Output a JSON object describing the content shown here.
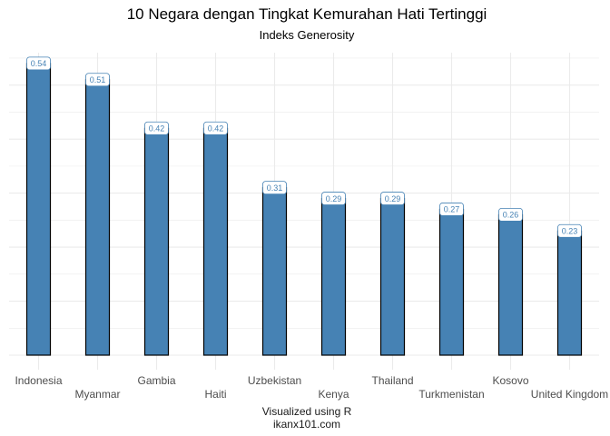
{
  "chart_data": {
    "type": "bar",
    "title": "10 Negara dengan Tingkat Kemurahan Hati Tertinggi",
    "subtitle": "Indeks Generosity",
    "caption_lines": [
      "Visualized using R",
      "ikanx101.com"
    ],
    "categories": [
      "Indonesia",
      "Myanmar",
      "Gambia",
      "Haiti",
      "Uzbekistan",
      "Kenya",
      "Thailand",
      "Turkmenistan",
      "Kosovo",
      "United Kingdom"
    ],
    "values": [
      0.54,
      0.51,
      0.42,
      0.42,
      0.31,
      0.29,
      0.29,
      0.27,
      0.26,
      0.23
    ],
    "data_labels": [
      "0.54",
      "0.51",
      "0.42",
      "0.42",
      "0.31",
      "0.29",
      "0.29",
      "0.27",
      "0.26",
      "0.23"
    ],
    "ylim": [
      0,
      0.56
    ],
    "xlabel": "",
    "ylabel": "",
    "grid": true,
    "y_axis_labels_shown": false,
    "x_labels_staggered": true,
    "bar_color": "#4682b4",
    "bar_border_color": "#000000",
    "label_text_color": "#4682b4",
    "grid_color": "#ebebeb"
  }
}
